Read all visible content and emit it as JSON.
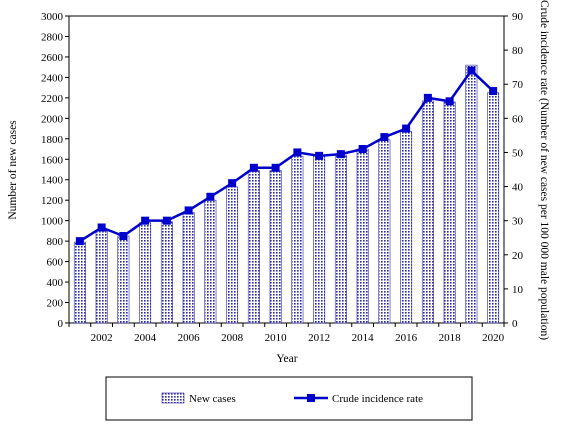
{
  "chart_data": {
    "type": "bar+line",
    "x": [
      2001,
      2002,
      2003,
      2004,
      2005,
      2006,
      2007,
      2008,
      2009,
      2010,
      2011,
      2012,
      2013,
      2014,
      2015,
      2016,
      2017,
      2018,
      2019,
      2020
    ],
    "x_tick_labels": [
      "2002",
      "2004",
      "2006",
      "2008",
      "2010",
      "2012",
      "2014",
      "2016",
      "2018",
      "2020"
    ],
    "series": [
      {
        "name": "New cases",
        "type": "bar",
        "axis": "left",
        "color": "#2c2ca0",
        "values": [
          790,
          900,
          850,
          980,
          990,
          1080,
          1200,
          1330,
          1490,
          1490,
          1630,
          1630,
          1640,
          1700,
          1790,
          1870,
          2170,
          2160,
          2520,
          2250
        ]
      },
      {
        "name": "Crude incidence rate",
        "type": "line",
        "axis": "right",
        "color": "#0000cc",
        "values": [
          24,
          28,
          25.5,
          30,
          30,
          33,
          37,
          41,
          45.5,
          45.5,
          50,
          49,
          49.5,
          51,
          54.5,
          57,
          66,
          65,
          74,
          68
        ]
      }
    ],
    "xlabel": "Year",
    "ylabel_left": "Number of new cases",
    "ylabel_right": "Crude incidence rate (Number of new cases per 100 000 male population)",
    "ylim_left": [
      0,
      3000
    ],
    "ylim_right": [
      0,
      90
    ],
    "y_ticks_left": [
      "0",
      "200",
      "400",
      "600",
      "800",
      "1000",
      "1200",
      "1400",
      "1600",
      "1800",
      "2000",
      "2200",
      "2400",
      "2600",
      "2800",
      "3000"
    ],
    "y_ticks_right": [
      "0",
      "10",
      "20",
      "30",
      "40",
      "50",
      "60",
      "70",
      "80",
      "90"
    ],
    "grid": false,
    "legend_position": "bottom"
  }
}
